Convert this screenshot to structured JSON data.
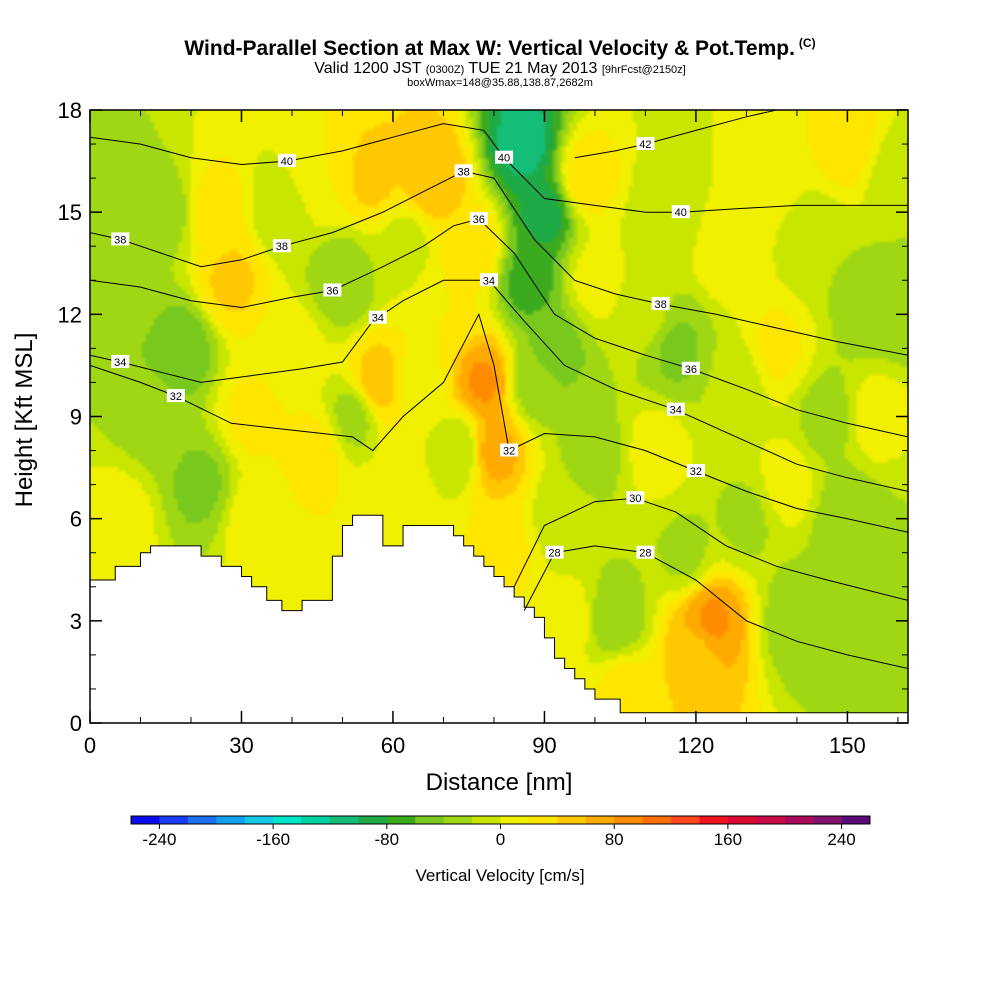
{
  "header": {
    "title": "Wind-Parallel Section at Max W: Vertical Velocity & Pot.Temp.",
    "title_mark": "(C)",
    "valid_prefix": "Valid 1200 JST",
    "valid_zulu": "(0300Z)",
    "valid_date": "TUE 21 May 2013",
    "forecast": "[9hrFcst@2150z]",
    "box_info": "boxWmax=148@35.88,138.87,2682m"
  },
  "chart_data": {
    "type": "heatmap",
    "xlabel": "Distance [nm]",
    "ylabel": "Height [Kft MSL]",
    "xlim": [
      0,
      162
    ],
    "ylim": [
      0,
      18
    ],
    "xticks": [
      0,
      30,
      60,
      90,
      120,
      150
    ],
    "yticks": [
      0,
      3,
      6,
      9,
      12,
      15,
      18
    ],
    "terrain": {
      "x": [
        0,
        3,
        5,
        8,
        10,
        12,
        15,
        18,
        20,
        22,
        24,
        26,
        28,
        30,
        32,
        35,
        38,
        42,
        45,
        48,
        50,
        52,
        55,
        58,
        60,
        62,
        65,
        68,
        70,
        72,
        74,
        76,
        78,
        80,
        82,
        84,
        86,
        88,
        90,
        92,
        94,
        96,
        98,
        100,
        102,
        105,
        110,
        120,
        130,
        140,
        150,
        160,
        162
      ],
      "h": [
        4.2,
        4.2,
        4.6,
        4.6,
        5.0,
        5.2,
        5.2,
        5.2,
        5.2,
        4.9,
        4.9,
        4.6,
        4.6,
        4.3,
        4.0,
        3.6,
        3.3,
        3.6,
        3.6,
        4.9,
        5.8,
        6.1,
        6.1,
        5.2,
        5.2,
        5.8,
        5.8,
        5.8,
        5.8,
        5.5,
        5.2,
        4.9,
        4.6,
        4.3,
        4.0,
        3.7,
        3.4,
        3.1,
        2.5,
        1.9,
        1.6,
        1.3,
        1.0,
        0.7,
        0.7,
        0.3,
        0.3,
        0.3,
        0.3,
        0.3,
        0.3,
        0.3,
        0.3
      ]
    },
    "field": [
      {
        "x": 2,
        "y": 15,
        "w": -40
      },
      {
        "x": 6,
        "y": 6,
        "w": 10
      },
      {
        "x": 8,
        "y": 13,
        "w": -25
      },
      {
        "x": 12,
        "y": 9,
        "w": -30
      },
      {
        "x": 15,
        "y": 15,
        "w": -30
      },
      {
        "x": 18,
        "y": 11,
        "w": -55
      },
      {
        "x": 22,
        "y": 7,
        "w": -45
      },
      {
        "x": 25,
        "y": 15,
        "w": 30
      },
      {
        "x": 28,
        "y": 13,
        "w": 45
      },
      {
        "x": 32,
        "y": 9,
        "w": 25
      },
      {
        "x": 33,
        "y": 6,
        "w": 15
      },
      {
        "x": 38,
        "y": 15,
        "w": -20
      },
      {
        "x": 40,
        "y": 11,
        "w": 10
      },
      {
        "x": 45,
        "y": 8,
        "w": 30
      },
      {
        "x": 45,
        "y": 16,
        "w": 20
      },
      {
        "x": 50,
        "y": 13,
        "w": -40
      },
      {
        "x": 52,
        "y": 9,
        "w": -30
      },
      {
        "x": 56,
        "y": 16,
        "w": 45
      },
      {
        "x": 57,
        "y": 10,
        "w": 55
      },
      {
        "x": 60,
        "y": 6.5,
        "w": 20
      },
      {
        "x": 62,
        "y": 14,
        "w": -10
      },
      {
        "x": 65,
        "y": 10,
        "w": 10
      },
      {
        "x": 68,
        "y": 16,
        "w": 60
      },
      {
        "x": 70,
        "y": 12,
        "w": 20
      },
      {
        "x": 73,
        "y": 8,
        "w": -20
      },
      {
        "x": 76,
        "y": 14,
        "w": 35
      },
      {
        "x": 78,
        "y": 10,
        "w": 85
      },
      {
        "x": 80,
        "y": 8,
        "w": 70
      },
      {
        "x": 82,
        "y": 5,
        "w": 25
      },
      {
        "x": 86,
        "y": 17,
        "w": -110
      },
      {
        "x": 87,
        "y": 13,
        "w": -70
      },
      {
        "x": 88,
        "y": 10,
        "w": -35
      },
      {
        "x": 90,
        "y": 15,
        "w": -90
      },
      {
        "x": 92,
        "y": 11,
        "w": -50
      },
      {
        "x": 94,
        "y": 6,
        "w": -15
      },
      {
        "x": 95,
        "y": 3,
        "w": 10
      },
      {
        "x": 98,
        "y": 16,
        "w": 35
      },
      {
        "x": 100,
        "y": 13,
        "w": 10
      },
      {
        "x": 100,
        "y": 8,
        "w": -30
      },
      {
        "x": 104,
        "y": 3,
        "w": -40
      },
      {
        "x": 106,
        "y": 1,
        "w": 30
      },
      {
        "x": 110,
        "y": 12,
        "w": -10
      },
      {
        "x": 112,
        "y": 8,
        "w": 10
      },
      {
        "x": 115,
        "y": 15,
        "w": -20
      },
      {
        "x": 116,
        "y": 11,
        "w": -45
      },
      {
        "x": 118,
        "y": 5,
        "w": -25
      },
      {
        "x": 120,
        "y": 2,
        "w": 50
      },
      {
        "x": 123,
        "y": 3,
        "w": 85
      },
      {
        "x": 126,
        "y": 14,
        "w": 20
      },
      {
        "x": 128,
        "y": 10,
        "w": -15
      },
      {
        "x": 130,
        "y": 6,
        "w": -25
      },
      {
        "x": 134,
        "y": 16,
        "w": 10
      },
      {
        "x": 136,
        "y": 11,
        "w": 25
      },
      {
        "x": 138,
        "y": 7,
        "w": 10
      },
      {
        "x": 140,
        "y": 3,
        "w": -35
      },
      {
        "x": 144,
        "y": 14,
        "w": -20
      },
      {
        "x": 146,
        "y": 9,
        "w": -30
      },
      {
        "x": 150,
        "y": 6,
        "w": -40
      },
      {
        "x": 150,
        "y": 17,
        "w": 30
      },
      {
        "x": 154,
        "y": 12,
        "w": -30
      },
      {
        "x": 156,
        "y": 9,
        "w": 15
      },
      {
        "x": 158,
        "y": 3,
        "w": -40
      },
      {
        "x": 160,
        "y": 16,
        "w": -15
      },
      {
        "x": 161,
        "y": 12,
        "w": -35
      },
      {
        "x": 161,
        "y": 6,
        "w": -20
      }
    ],
    "isentropes": [
      {
        "value": 28,
        "label_x": [
          92,
          110
        ],
        "pts": [
          [
            86,
            3.3
          ],
          [
            92,
            5.0
          ],
          [
            100,
            5.2
          ],
          [
            110,
            5.0
          ],
          [
            120,
            4.2
          ],
          [
            130,
            3.0
          ],
          [
            140,
            2.4
          ],
          [
            150,
            2.0
          ],
          [
            162,
            1.6
          ]
        ]
      },
      {
        "value": 30,
        "label_x": [
          108
        ],
        "pts": [
          [
            84,
            4.0
          ],
          [
            90,
            5.8
          ],
          [
            100,
            6.5
          ],
          [
            108,
            6.6
          ],
          [
            116,
            6.2
          ],
          [
            126,
            5.2
          ],
          [
            136,
            4.6
          ],
          [
            146,
            4.2
          ],
          [
            162,
            3.6
          ]
        ]
      },
      {
        "value": 32,
        "label_x": [
          17,
          83,
          120
        ],
        "pts": [
          [
            0,
            10.5
          ],
          [
            10,
            10.0
          ],
          [
            17,
            9.6
          ],
          [
            28,
            8.8
          ],
          [
            40,
            8.6
          ],
          [
            52,
            8.4
          ],
          [
            56,
            8.0
          ],
          [
            62,
            9.0
          ],
          [
            70,
            10.0
          ],
          [
            77,
            12.0
          ],
          [
            80,
            10.5
          ],
          [
            83,
            8.0
          ],
          [
            90,
            8.5
          ],
          [
            100,
            8.4
          ],
          [
            110,
            8.0
          ],
          [
            120,
            7.4
          ],
          [
            130,
            6.8
          ],
          [
            140,
            6.3
          ],
          [
            150,
            6.0
          ],
          [
            162,
            5.6
          ]
        ]
      },
      {
        "value": 34,
        "label_x": [
          6,
          57,
          79,
          116
        ],
        "pts": [
          [
            0,
            10.8
          ],
          [
            6,
            10.6
          ],
          [
            14,
            10.3
          ],
          [
            22,
            10.0
          ],
          [
            32,
            10.2
          ],
          [
            42,
            10.4
          ],
          [
            50,
            10.6
          ],
          [
            56,
            11.8
          ],
          [
            62,
            12.4
          ],
          [
            70,
            13.0
          ],
          [
            79,
            13.0
          ],
          [
            86,
            11.8
          ],
          [
            94,
            10.5
          ],
          [
            104,
            9.8
          ],
          [
            116,
            9.2
          ],
          [
            128,
            8.4
          ],
          [
            140,
            7.6
          ],
          [
            150,
            7.2
          ],
          [
            162,
            6.8
          ]
        ]
      },
      {
        "value": 36,
        "label_x": [
          48,
          77,
          119
        ],
        "pts": [
          [
            0,
            13.0
          ],
          [
            10,
            12.8
          ],
          [
            20,
            12.4
          ],
          [
            30,
            12.2
          ],
          [
            40,
            12.5
          ],
          [
            48,
            12.7
          ],
          [
            58,
            13.4
          ],
          [
            66,
            14.0
          ],
          [
            72,
            14.6
          ],
          [
            77,
            14.8
          ],
          [
            84,
            13.8
          ],
          [
            92,
            12.0
          ],
          [
            100,
            11.3
          ],
          [
            110,
            10.8
          ],
          [
            119,
            10.4
          ],
          [
            130,
            9.8
          ],
          [
            140,
            9.2
          ],
          [
            150,
            8.8
          ],
          [
            162,
            8.4
          ]
        ]
      },
      {
        "value": 38,
        "label_x": [
          6,
          38,
          74,
          113
        ],
        "pts": [
          [
            0,
            14.4
          ],
          [
            6,
            14.2
          ],
          [
            14,
            13.8
          ],
          [
            22,
            13.4
          ],
          [
            30,
            13.6
          ],
          [
            38,
            14.0
          ],
          [
            48,
            14.4
          ],
          [
            58,
            15.0
          ],
          [
            66,
            15.6
          ],
          [
            74,
            16.2
          ],
          [
            80,
            16.0
          ],
          [
            88,
            14.2
          ],
          [
            96,
            13.0
          ],
          [
            104,
            12.6
          ],
          [
            113,
            12.3
          ],
          [
            124,
            12.0
          ],
          [
            136,
            11.6
          ],
          [
            148,
            11.2
          ],
          [
            162,
            10.8
          ]
        ]
      },
      {
        "value": 40,
        "label_x": [
          39,
          82,
          117
        ],
        "pts": [
          [
            0,
            17.2
          ],
          [
            10,
            17.0
          ],
          [
            20,
            16.6
          ],
          [
            30,
            16.4
          ],
          [
            39,
            16.5
          ],
          [
            50,
            16.8
          ],
          [
            60,
            17.2
          ],
          [
            70,
            17.6
          ],
          [
            78,
            17.4
          ],
          [
            82,
            16.6
          ],
          [
            90,
            15.4
          ],
          [
            100,
            15.2
          ],
          [
            110,
            15.0
          ],
          [
            117,
            15.0
          ],
          [
            128,
            15.1
          ],
          [
            140,
            15.2
          ],
          [
            150,
            15.2
          ],
          [
            162,
            15.2
          ]
        ]
      },
      {
        "value": 42,
        "label_x": [
          110
        ],
        "pts": [
          [
            96,
            16.6
          ],
          [
            104,
            16.8
          ],
          [
            110,
            17.0
          ],
          [
            120,
            17.4
          ],
          [
            130,
            17.8
          ],
          [
            136,
            18.0
          ]
        ]
      }
    ],
    "colorbar": {
      "title": "Vertical Velocity [cm/s]",
      "tick_labels": [
        "-240",
        "-160",
        "-80",
        "0",
        "80",
        "160",
        "240"
      ],
      "tick_values": [
        -240,
        -160,
        -80,
        0,
        80,
        160,
        240
      ],
      "levels": [
        -260,
        -240,
        -220,
        -200,
        -180,
        -160,
        -140,
        -120,
        -100,
        -80,
        -60,
        -40,
        -20,
        0,
        20,
        40,
        60,
        80,
        100,
        120,
        140,
        160,
        180,
        200,
        220,
        240,
        260
      ],
      "colors": [
        "#0a0af0",
        "#1a3cf5",
        "#1e6ef0",
        "#14a0f0",
        "#14c8e6",
        "#00e6c8",
        "#00d2a0",
        "#14be78",
        "#1eaa46",
        "#3caa1e",
        "#78c81e",
        "#a0d714",
        "#c8e600",
        "#f0f000",
        "#ffe600",
        "#ffc800",
        "#ffaa00",
        "#ff8c00",
        "#ff6e0a",
        "#ff461e",
        "#f0141e",
        "#dc0a32",
        "#c80a46",
        "#aa0a5a",
        "#82146e",
        "#5a0a78"
      ]
    }
  }
}
